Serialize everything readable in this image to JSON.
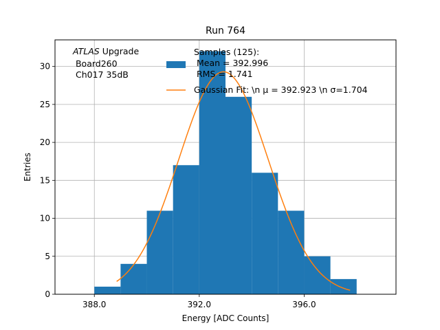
{
  "chart_data": {
    "type": "bar",
    "title": "Run 764",
    "xlabel": "Energy [ADC Counts]",
    "ylabel": "Entries",
    "xlim": [
      386.5,
      399.5
    ],
    "ylim": [
      0,
      33.5
    ],
    "grid": true,
    "bar_color": "#1f77b4",
    "fit_color": "#ff7f0e",
    "grid_color": "#b0b0b0",
    "x_ticks": [
      388,
      392,
      396
    ],
    "x_tick_labels": [
      "388.0",
      "392.0",
      "396.0"
    ],
    "y_ticks": [
      0,
      5,
      10,
      15,
      20,
      25,
      30
    ],
    "y_tick_labels": [
      "0",
      "5",
      "10",
      "15",
      "20",
      "25",
      "30"
    ],
    "bins": [
      {
        "x0": 388,
        "x1": 389,
        "count": 1
      },
      {
        "x0": 389,
        "x1": 390,
        "count": 4
      },
      {
        "x0": 390,
        "x1": 391,
        "count": 11
      },
      {
        "x0": 391,
        "x1": 392,
        "count": 17
      },
      {
        "x0": 392,
        "x1": 393,
        "count": 32
      },
      {
        "x0": 393,
        "x1": 394,
        "count": 26
      },
      {
        "x0": 394,
        "x1": 395,
        "count": 16
      },
      {
        "x0": 395,
        "x1": 396,
        "count": 11
      },
      {
        "x0": 396,
        "x1": 397,
        "count": 5
      },
      {
        "x0": 397,
        "x1": 398,
        "count": 2
      }
    ],
    "gaussian_fit": {
      "mu": 392.923,
      "sigma": 1.704,
      "amplitude": 29.3,
      "x_range": [
        388.85,
        397.75
      ]
    },
    "annotation": {
      "atlas": "ATLAS",
      "upgrade": " Upgrade",
      "board": " Board260",
      "channel": " Ch017 35dB"
    },
    "legend": {
      "samples_line1": "Samples (125):",
      "samples_line2": " Mean = 392.996",
      "samples_line3": " RMS = 1.741",
      "fit_label": "Gaussian Fit: \\n μ = 392.923 \\n σ=1.704"
    }
  }
}
